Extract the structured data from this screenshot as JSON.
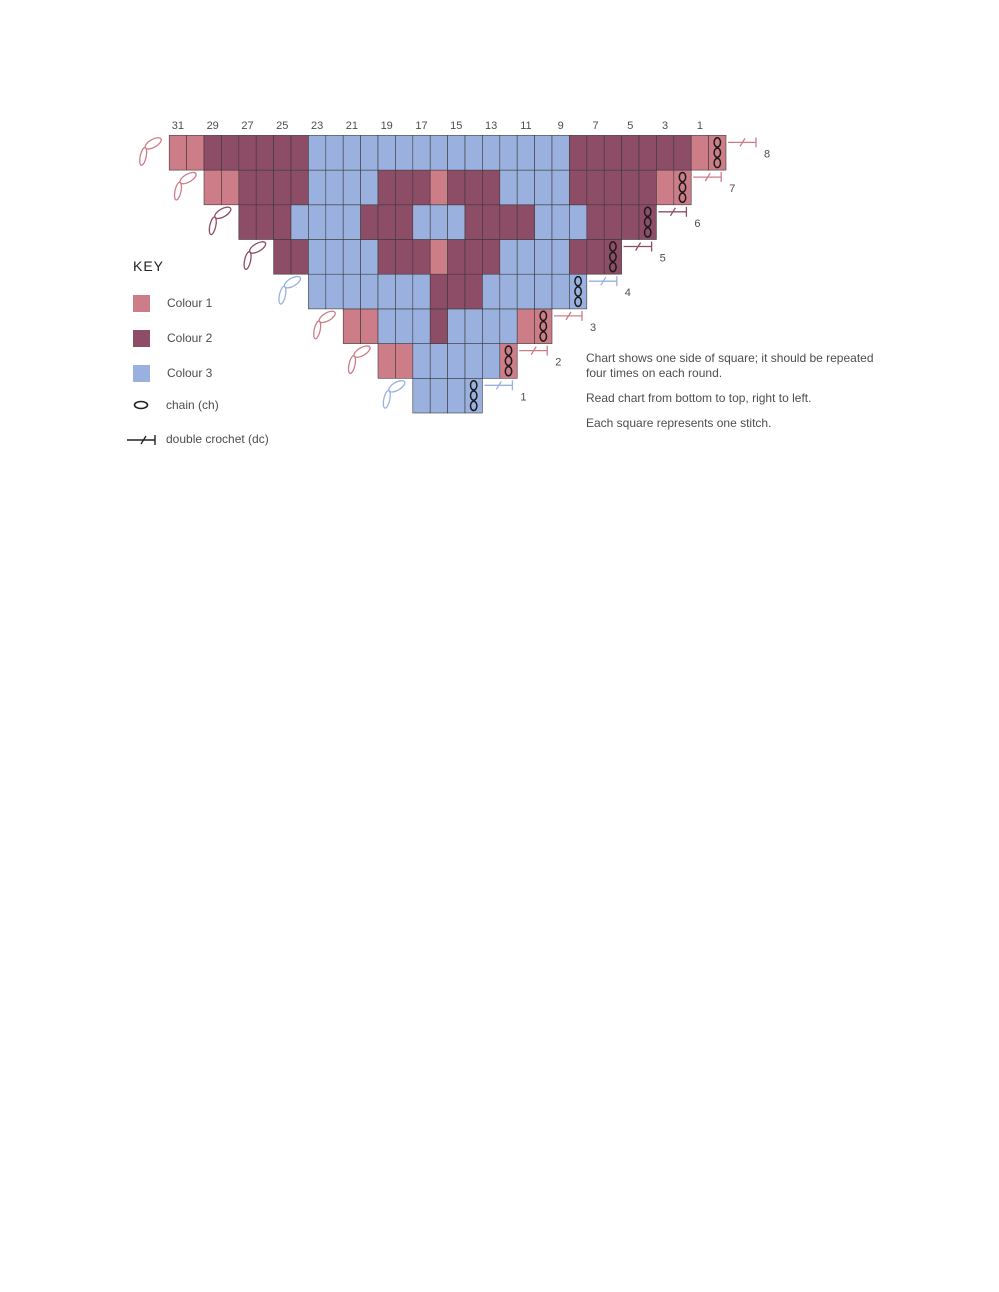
{
  "colors": {
    "colour1": "#cd7d88",
    "colour2": "#8e4d66",
    "colour3": "#9ab1df",
    "grid": "#3a3a3a"
  },
  "chart": {
    "column_labels": [
      "31",
      "29",
      "27",
      "25",
      "23",
      "21",
      "19",
      "17",
      "15",
      "13",
      "11",
      "9",
      "7",
      "5",
      "3",
      "1"
    ],
    "rows": [
      {
        "label": "1",
        "cells": "3333",
        "start_colour": "3"
      },
      {
        "label": "2",
        "cells": "11333331",
        "start_colour": "1"
      },
      {
        "label": "3",
        "cells": "113332333311",
        "start_colour": "1"
      },
      {
        "label": "4",
        "cells": "3333333222333333",
        "start_colour": "3"
      },
      {
        "label": "5",
        "cells": "22333322212223333222",
        "start_colour": "2"
      },
      {
        "label": "6",
        "cells": "222333322233322223332222",
        "start_colour": "2"
      },
      {
        "label": "7",
        "cells": "1122223333222122233332222211",
        "start_colour": "1"
      },
      {
        "label": "8",
        "cells": "11222222333333333333333222222211",
        "start_colour": "1"
      }
    ]
  },
  "key": {
    "title": "KEY",
    "items": [
      {
        "label": "Colour 1"
      },
      {
        "label": "Colour 2"
      },
      {
        "label": "Colour 3"
      },
      {
        "label": "chain (ch)",
        "icon": "chain-icon"
      },
      {
        "label": "double crochet (dc)",
        "icon": "double-crochet-icon"
      }
    ]
  },
  "notes": [
    "Chart shows one side of square; it should be repeated four times on each round.",
    "Read chart from bottom to top, right to left.",
    "Each square represents one stitch."
  ]
}
